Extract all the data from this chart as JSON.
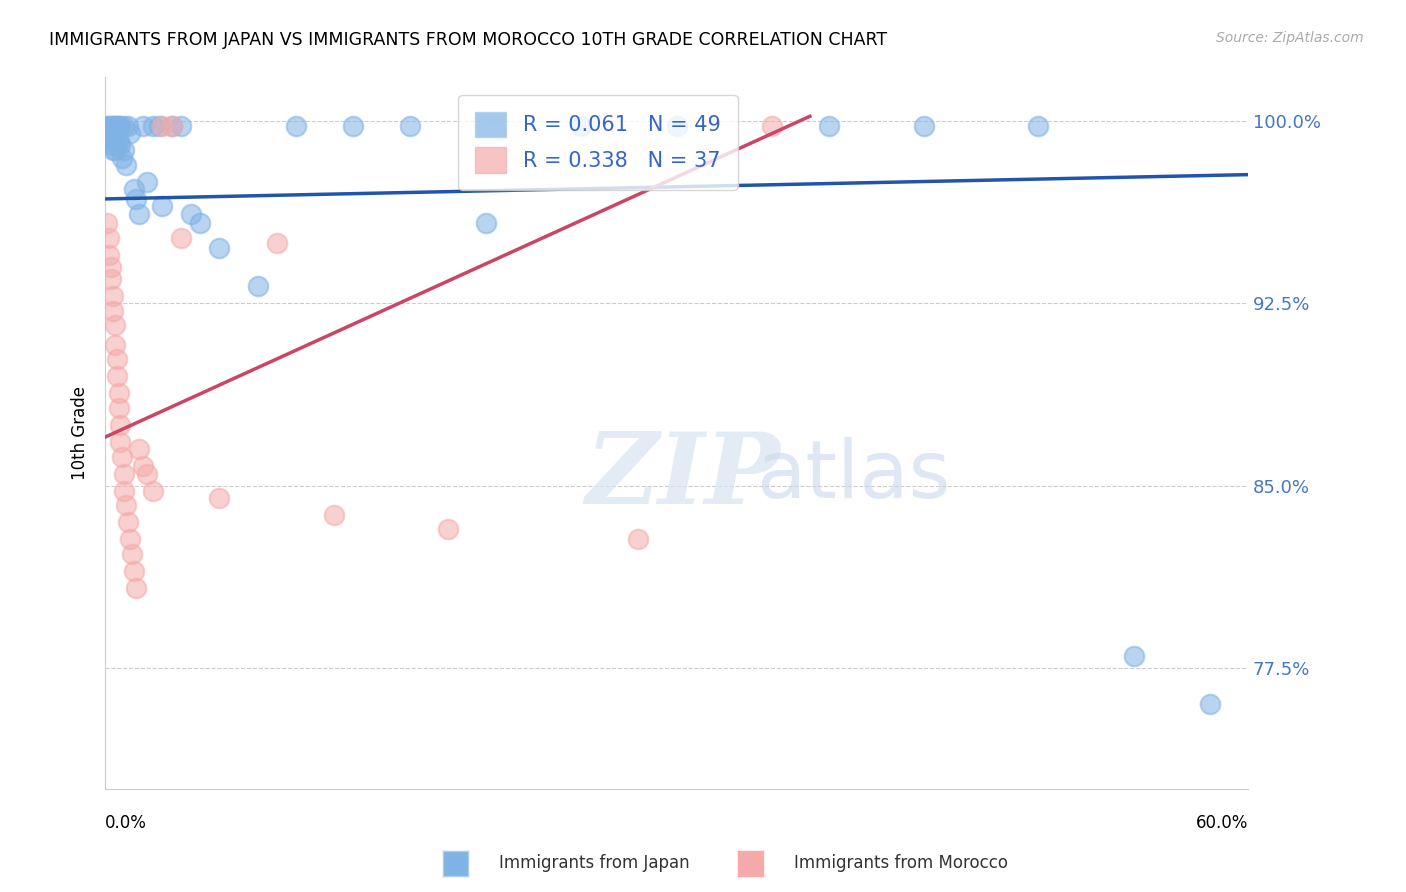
{
  "title": "IMMIGRANTS FROM JAPAN VS IMMIGRANTS FROM MOROCCO 10TH GRADE CORRELATION CHART",
  "source": "Source: ZipAtlas.com",
  "ylabel": "10th Grade",
  "xmin": 0.0,
  "xmax": 0.6,
  "ymin": 0.725,
  "ymax": 1.018,
  "japan_color": "#7FB2E5",
  "morocco_color": "#F4AAAA",
  "japan_line_color": "#2255AA",
  "morocco_line_color": "#CC4466",
  "japan_R": 0.061,
  "japan_N": 49,
  "morocco_R": 0.338,
  "morocco_N": 37,
  "ytick_vals": [
    0.775,
    0.85,
    0.925,
    1.0
  ],
  "ytick_labels": [
    "77.5%",
    "85.0%",
    "92.5%",
    "100.0%"
  ],
  "japan_x": [
    0.001,
    0.002,
    0.002,
    0.003,
    0.003,
    0.003,
    0.004,
    0.004,
    0.004,
    0.005,
    0.005,
    0.005,
    0.006,
    0.006,
    0.007,
    0.007,
    0.008,
    0.008,
    0.009,
    0.01,
    0.01,
    0.011,
    0.012,
    0.013,
    0.015,
    0.016,
    0.018,
    0.02,
    0.022,
    0.025,
    0.028,
    0.03,
    0.035,
    0.04,
    0.045,
    0.05,
    0.06,
    0.08,
    0.1,
    0.13,
    0.16,
    0.2,
    0.25,
    0.3,
    0.38,
    0.43,
    0.49,
    0.54,
    0.58
  ],
  "japan_y": [
    0.998,
    0.998,
    0.994,
    0.998,
    0.994,
    0.99,
    0.998,
    0.994,
    0.988,
    0.998,
    0.994,
    0.988,
    0.998,
    0.99,
    0.998,
    0.992,
    0.998,
    0.99,
    0.985,
    0.998,
    0.988,
    0.982,
    0.998,
    0.995,
    0.972,
    0.968,
    0.962,
    0.998,
    0.975,
    0.998,
    0.998,
    0.965,
    0.998,
    0.998,
    0.962,
    0.958,
    0.948,
    0.932,
    0.998,
    0.998,
    0.998,
    0.958,
    0.998,
    0.998,
    0.998,
    0.998,
    0.998,
    0.78,
    0.76
  ],
  "morocco_x": [
    0.001,
    0.002,
    0.002,
    0.003,
    0.003,
    0.004,
    0.004,
    0.005,
    0.005,
    0.006,
    0.006,
    0.007,
    0.007,
    0.008,
    0.008,
    0.009,
    0.01,
    0.01,
    0.011,
    0.012,
    0.013,
    0.014,
    0.015,
    0.016,
    0.018,
    0.02,
    0.022,
    0.025,
    0.03,
    0.035,
    0.04,
    0.06,
    0.09,
    0.12,
    0.18,
    0.28,
    0.35
  ],
  "morocco_y": [
    0.958,
    0.952,
    0.945,
    0.94,
    0.935,
    0.928,
    0.922,
    0.916,
    0.908,
    0.902,
    0.895,
    0.888,
    0.882,
    0.875,
    0.868,
    0.862,
    0.855,
    0.848,
    0.842,
    0.835,
    0.828,
    0.822,
    0.815,
    0.808,
    0.865,
    0.858,
    0.855,
    0.848,
    0.998,
    0.998,
    0.952,
    0.845,
    0.95,
    0.838,
    0.832,
    0.828,
    0.998
  ],
  "japan_line_x": [
    0.0,
    0.6
  ],
  "japan_line_y": [
    0.968,
    0.978
  ],
  "morocco_line_x": [
    0.0,
    0.37
  ],
  "morocco_line_y": [
    0.87,
    1.002
  ]
}
